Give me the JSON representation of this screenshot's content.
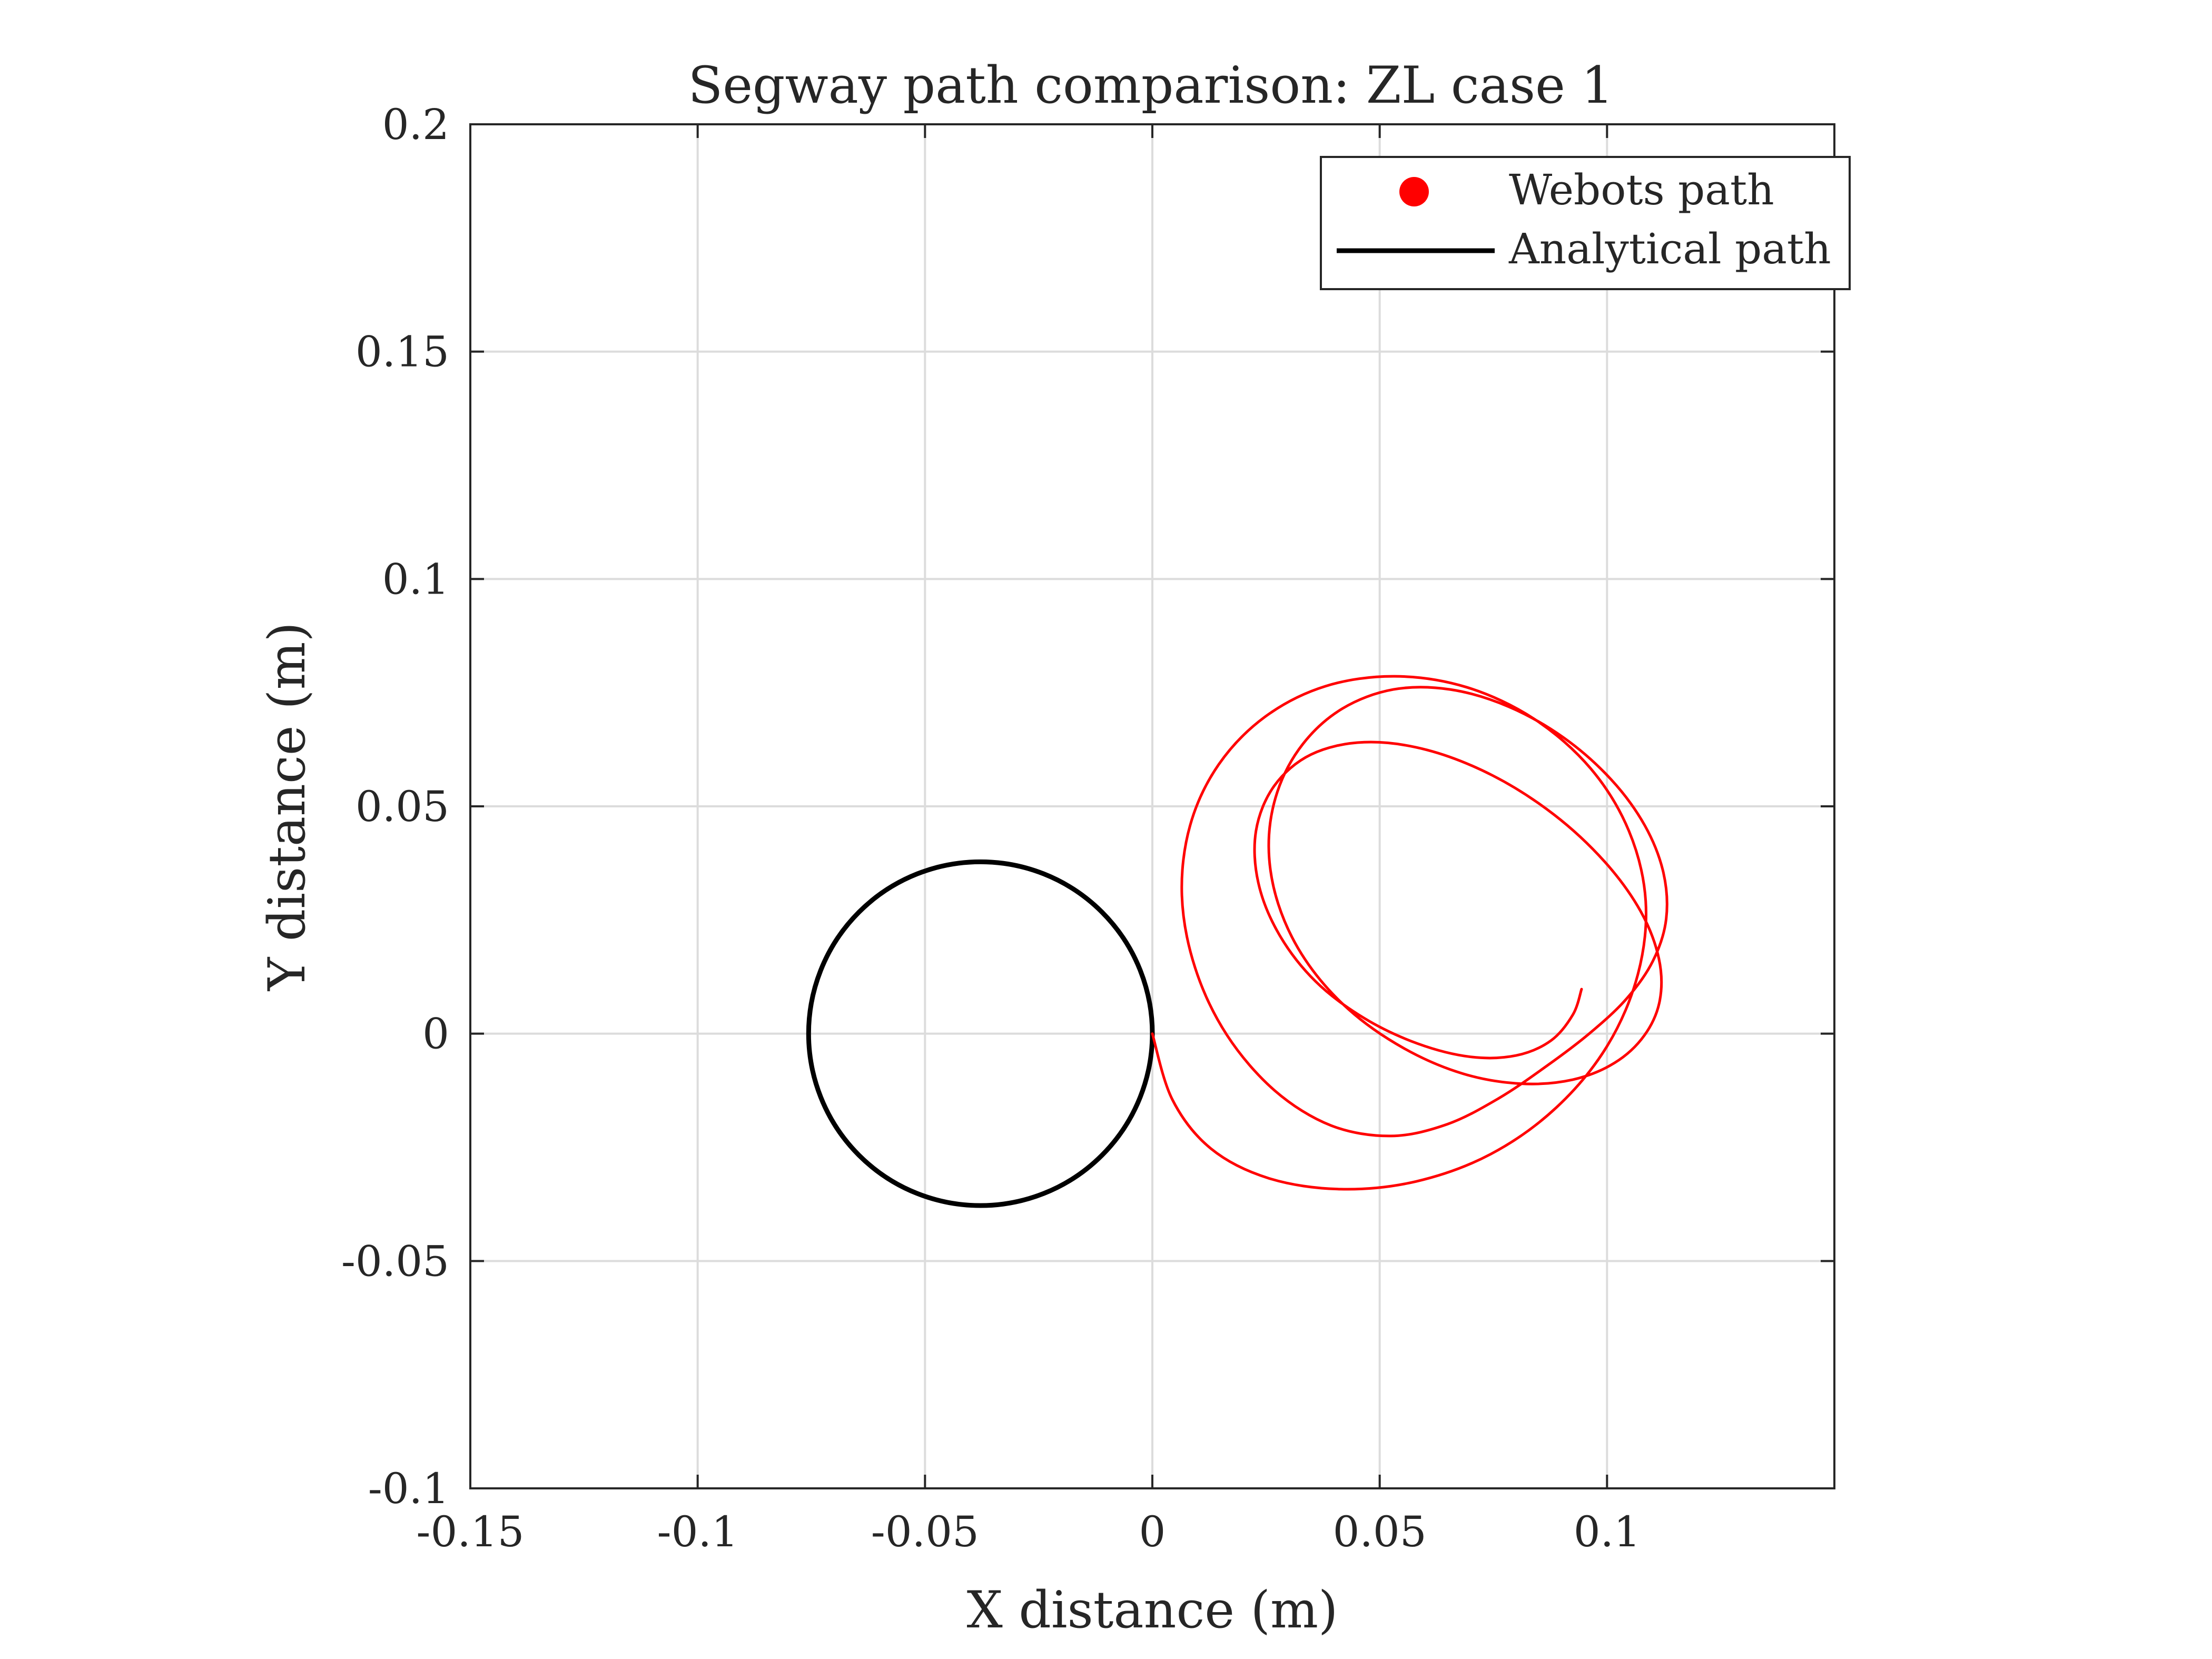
{
  "chart_data": {
    "type": "line",
    "title": "Segway path comparison: ZL case 1",
    "xlabel": "X distance (m)",
    "ylabel": "Y distance (m)",
    "xlim": [
      -0.15,
      0.15
    ],
    "ylim": [
      -0.1,
      0.2
    ],
    "xticks": [
      -0.15,
      -0.1,
      -0.05,
      0,
      0.05,
      0.1
    ],
    "xtick_labels": [
      "-0.15",
      "-0.1",
      "-0.05",
      "0",
      "0.05",
      "0.1"
    ],
    "yticks": [
      -0.1,
      -0.05,
      0,
      0.05,
      0.1,
      0.15,
      0.2
    ],
    "ytick_labels": [
      "-0.1",
      "-0.05",
      "0",
      "0.05",
      "0.1",
      "0.15",
      "0.2"
    ],
    "grid": true,
    "legend_position": "top-right",
    "series": [
      {
        "name": "Webots path",
        "color": "#ff0000",
        "marker": "dot",
        "x": [
          0.0,
          0.0044,
          0.0129,
          0.0256,
          0.0414,
          0.058,
          0.0744,
          0.0889,
          0.1001,
          0.1068,
          0.1085,
          0.1048,
          0.0964,
          0.084,
          0.0691,
          0.0533,
          0.038,
          0.0248,
          0.0146,
          0.0083,
          0.0065,
          0.0094,
          0.0164,
          0.0269,
          0.0393,
          0.0525,
          0.0649,
          0.0762,
          0.0866,
          0.0962,
          0.1043,
          0.1101,
          0.113,
          0.1124,
          0.1083,
          0.1009,
          0.0906,
          0.0784,
          0.0655,
          0.053,
          0.0418,
          0.0331,
          0.0275,
          0.0256,
          0.0277,
          0.0336,
          0.0431,
          0.0553,
          0.0683,
          0.0811,
          0.0925,
          0.1017,
          0.1082,
          0.1116,
          0.1114,
          0.1074,
          0.0995,
          0.0883,
          0.0748,
          0.0604,
          0.0466,
          0.0349,
          0.0268,
          0.0228,
          0.0233,
          0.0279,
          0.0359,
          0.0466,
          0.0584,
          0.07,
          0.08,
          0.0877,
          0.0925,
          0.0944
        ],
        "y": [
          0.0,
          -0.0145,
          -0.0253,
          -0.0318,
          -0.0342,
          -0.0325,
          -0.0265,
          -0.0162,
          -0.0026,
          0.0131,
          0.0292,
          0.0446,
          0.0583,
          0.0692,
          0.0762,
          0.0786,
          0.0764,
          0.0697,
          0.0592,
          0.0458,
          0.0304,
          0.0145,
          -0.0003,
          -0.0125,
          -0.0202,
          -0.0225,
          -0.0199,
          -0.0142,
          -0.0072,
          0.0001,
          0.0077,
          0.016,
          0.0252,
          0.0354,
          0.0458,
          0.0559,
          0.065,
          0.0719,
          0.0757,
          0.0757,
          0.0715,
          0.0637,
          0.0532,
          0.0411,
          0.0285,
          0.0163,
          0.0054,
          -0.0032,
          -0.0088,
          -0.011,
          -0.0101,
          -0.0064,
          -0.0004,
          0.0073,
          0.0165,
          0.0269,
          0.0378,
          0.0482,
          0.0568,
          0.0624,
          0.0641,
          0.0614,
          0.0545,
          0.0446,
          0.0332,
          0.0218,
          0.0115,
          0.0034,
          -0.0022,
          -0.0051,
          -0.0048,
          -0.0015,
          0.0042,
          0.0098
        ]
      },
      {
        "name": "Analytical path",
        "color": "#000000",
        "marker": "line",
        "center": [
          -0.0378,
          0
        ],
        "radius": 0.0378
      }
    ]
  }
}
